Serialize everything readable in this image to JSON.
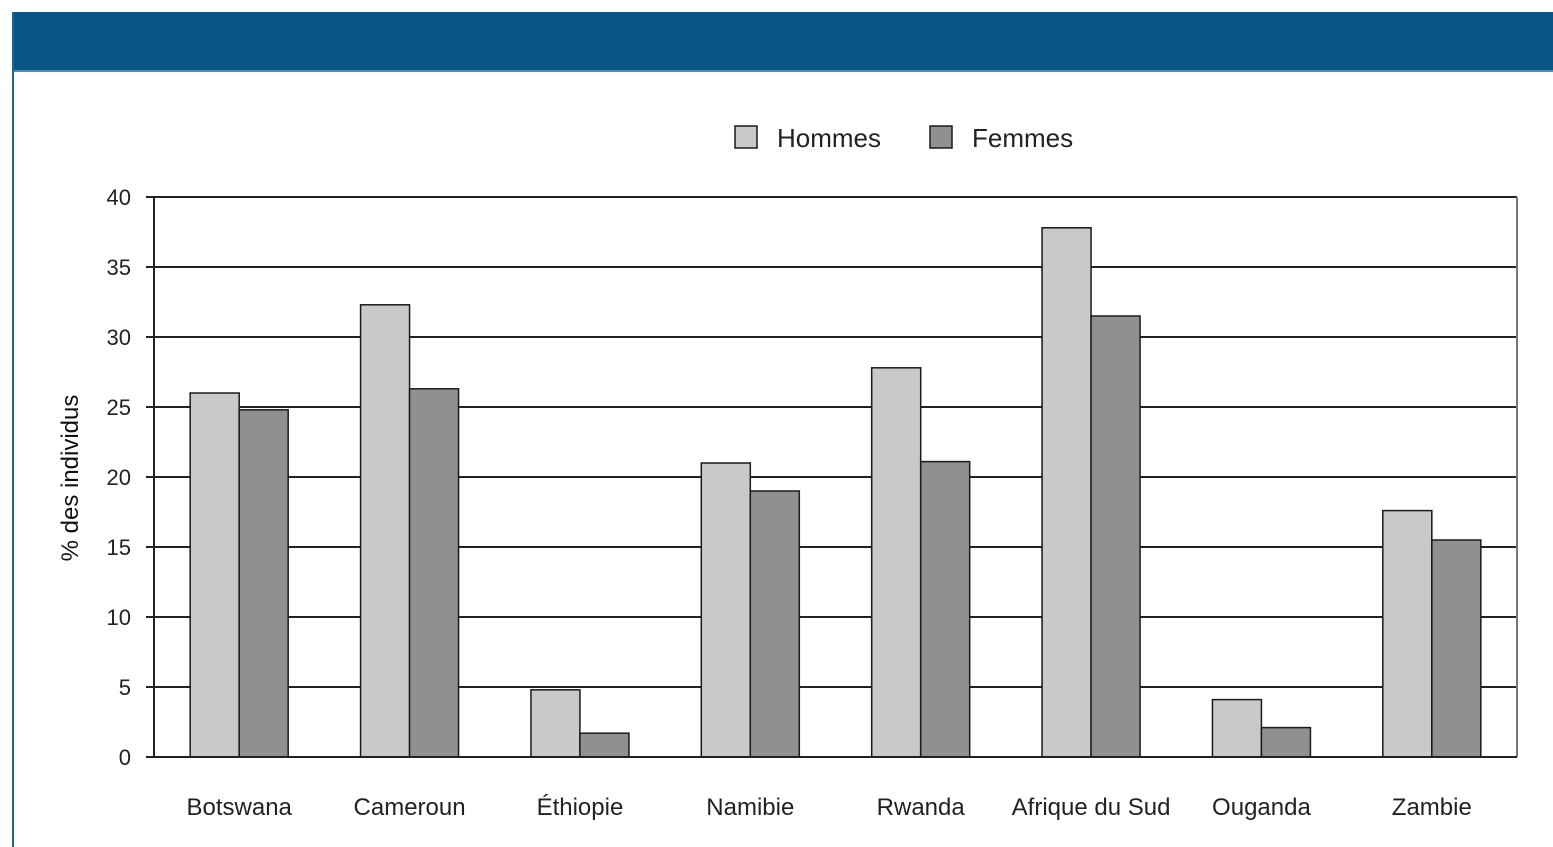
{
  "colors": {
    "header": "#075584",
    "hommes": "#c8c9cb",
    "femmes": "#8f9092",
    "grid": "#222222"
  },
  "chart_data": {
    "type": "bar",
    "title": "",
    "xlabel": "",
    "ylabel": "% des individus",
    "ylim": [
      0,
      40
    ],
    "yticks": [
      0,
      5,
      10,
      15,
      20,
      25,
      30,
      35,
      40
    ],
    "grid": true,
    "legend_position": "top-center",
    "categories": [
      "Botswana",
      "Cameroun",
      "Éthiopie",
      "Namibie",
      "Rwanda",
      "Afrique du Sud",
      "Ouganda",
      "Zambie"
    ],
    "series": [
      {
        "name": "Hommes",
        "color": "#c8c9cb",
        "values": [
          26,
          32.3,
          4.8,
          21,
          27.8,
          37.8,
          4.1,
          17.6
        ]
      },
      {
        "name": "Femmes",
        "color": "#8f9092",
        "values": [
          24.8,
          26.3,
          1.7,
          19,
          21.1,
          31.5,
          2.1,
          15.5
        ]
      }
    ]
  }
}
